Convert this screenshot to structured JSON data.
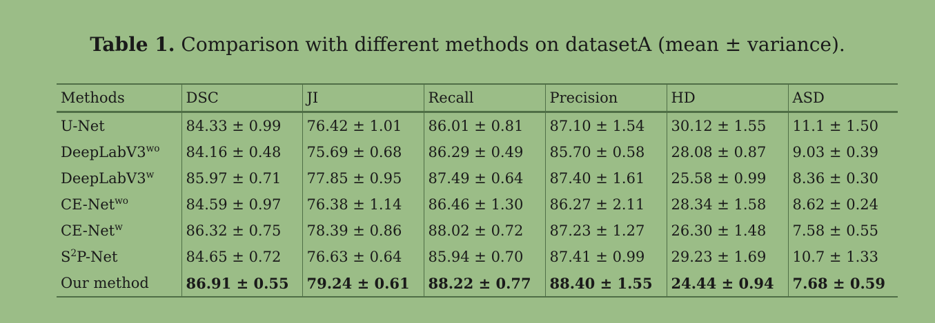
{
  "caption": {
    "label": "Table 1.",
    "text": "Comparison with different methods on datasetA (mean ± variance)."
  },
  "table": {
    "headers": [
      "Methods",
      "DSC",
      "JI",
      "Recall",
      "Precision",
      "HD",
      "ASD"
    ],
    "rows": [
      {
        "method_base": "U-Net",
        "method_sup": "",
        "method_tail": "",
        "bold": false,
        "cells": [
          "84.33 ± 0.99",
          "76.42 ± 1.01",
          "86.01 ± 0.81",
          "87.10 ± 1.54",
          "30.12 ± 1.55",
          "11.1 ± 1.50"
        ]
      },
      {
        "method_base": "DeepLabV3",
        "method_sup": "wo",
        "method_tail": "",
        "bold": false,
        "cells": [
          "84.16 ± 0.48",
          "75.69 ± 0.68",
          "86.29 ± 0.49",
          "85.70 ± 0.58",
          "28.08 ± 0.87",
          "9.03 ± 0.39"
        ]
      },
      {
        "method_base": "DeepLabV3",
        "method_sup": "w",
        "method_tail": "",
        "bold": false,
        "cells": [
          "85.97 ± 0.71",
          "77.85 ± 0.95",
          "87.49 ± 0.64",
          "87.40 ± 1.61",
          "25.58 ± 0.99",
          "8.36 ± 0.30"
        ]
      },
      {
        "method_base": "CE-Net",
        "method_sup": "wo",
        "method_tail": "",
        "bold": false,
        "cells": [
          "84.59 ± 0.97",
          "76.38 ± 1.14",
          "86.46 ± 1.30",
          "86.27 ± 2.11",
          "28.34 ± 1.58",
          "8.62 ± 0.24"
        ]
      },
      {
        "method_base": "CE-Net",
        "method_sup": "w",
        "method_tail": "",
        "bold": false,
        "cells": [
          "86.32 ± 0.75",
          "78.39 ± 0.86",
          "88.02 ± 0.72",
          "87.23 ± 1.27",
          "26.30 ± 1.48",
          "7.58 ± 0.55"
        ]
      },
      {
        "method_base": "S",
        "method_sup": "2",
        "method_tail": "P-Net",
        "bold": false,
        "cells": [
          "84.65 ± 0.72",
          "76.63 ± 0.64",
          "85.94 ± 0.70",
          "87.41 ± 0.99",
          "29.23 ± 1.69",
          "10.7 ± 1.33"
        ]
      },
      {
        "method_base": "Our method",
        "method_sup": "",
        "method_tail": "",
        "bold": true,
        "cells": [
          "86.91 ± 0.55",
          "79.24 ± 0.61",
          "88.22 ± 0.77",
          "88.40 ± 1.55",
          "24.44 ± 0.94",
          "7.68 ± 0.59"
        ]
      }
    ]
  }
}
